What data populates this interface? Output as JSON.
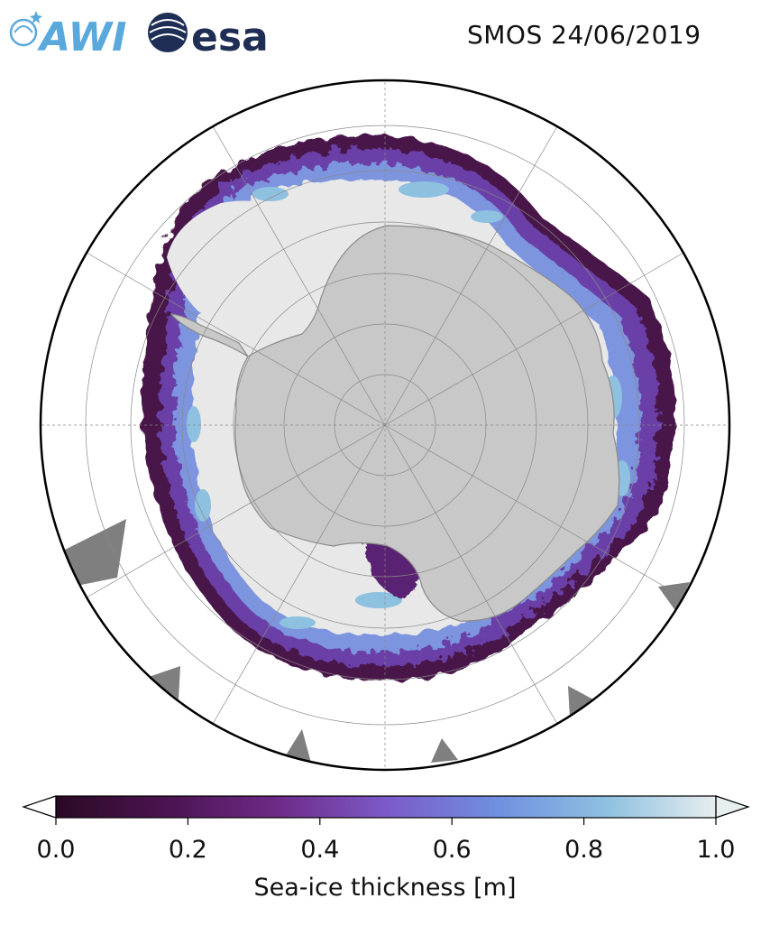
{
  "header": {
    "title": "SMOS 24/06/2019",
    "logos": [
      {
        "name": "awi-logo",
        "text": "AWI"
      },
      {
        "name": "esa-logo",
        "text": "esa"
      }
    ]
  },
  "map": {
    "projection": "south-polar-stereographic",
    "graticule": "on",
    "colors": {
      "land": "#c8c8c8",
      "land_edge": "#8a8a8a",
      "thick_ice": "#e8e8e8",
      "coast_shadow": "#7f7f7f",
      "frame": "#000000"
    }
  },
  "colorbar": {
    "label": "Sea-ice thickness [m]",
    "ticks": [
      "0.0",
      "0.2",
      "0.4",
      "0.6",
      "0.8",
      "1.0"
    ],
    "range": [
      0.0,
      1.0
    ],
    "extend": "both",
    "colormap": [
      "#2a0a24",
      "#4b1350",
      "#6d2a86",
      "#7c5ac8",
      "#6f8fe0",
      "#8ec0e0",
      "#e6eeee"
    ]
  }
}
